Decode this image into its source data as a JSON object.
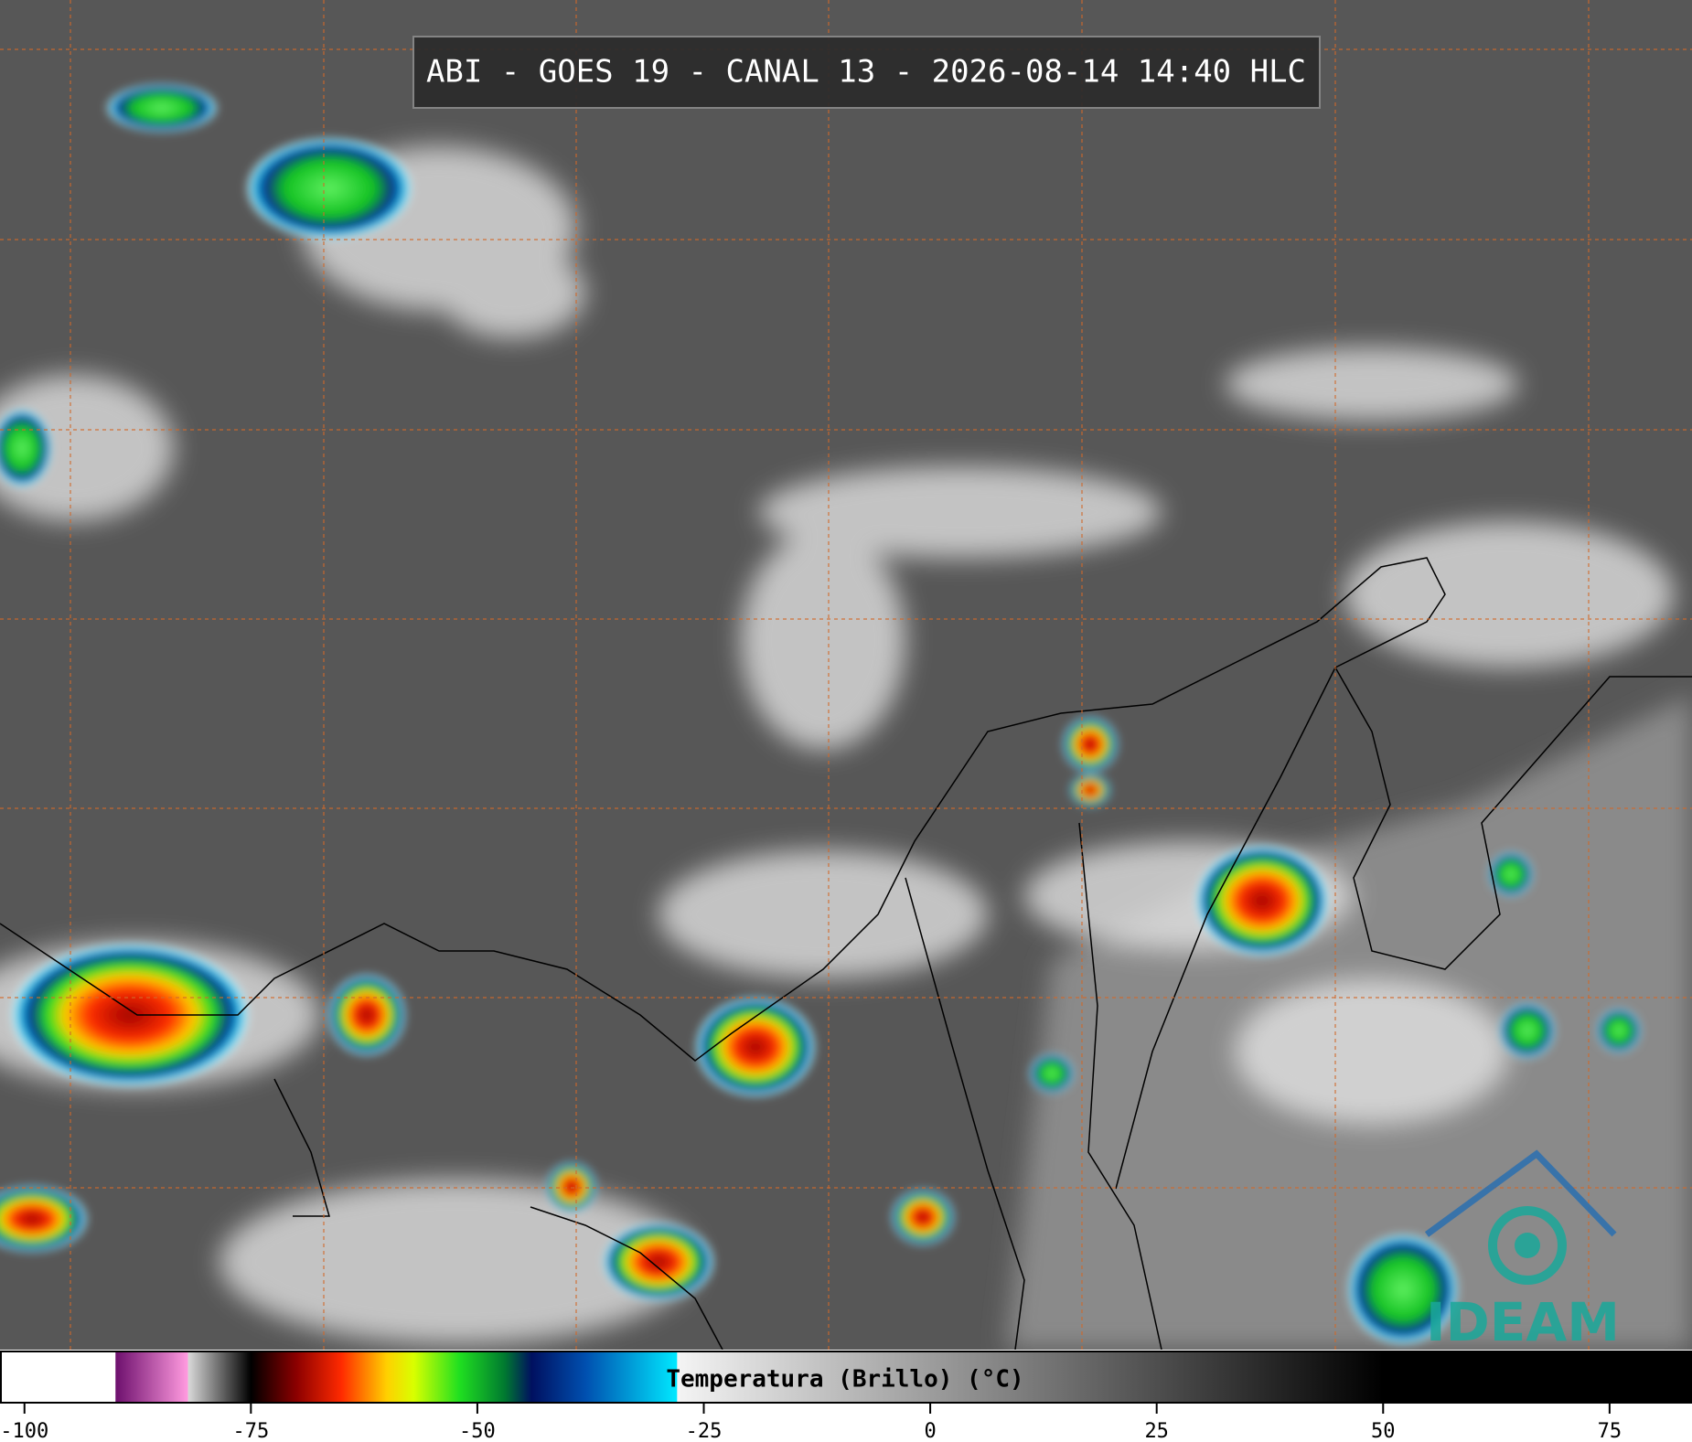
{
  "header": {
    "title": "ABI - GOES 19 - CANAL 13 - 2026-08-14 14:40 HLC"
  },
  "colorbar": {
    "label": "Temperatura (Brillo) (°C)",
    "lim": [
      -102.6,
      84.0
    ],
    "ticks": [
      -100,
      -75,
      -50,
      -25,
      0,
      25,
      50,
      75
    ],
    "colormap": [
      {
        "value": -90,
        "color": "#ffffff"
      },
      {
        "value": -89.9,
        "color": "#6e106e"
      },
      {
        "value": -82,
        "color": "#ff9adf"
      },
      {
        "value": -81.9,
        "color": "#d8d8d8"
      },
      {
        "value": -76,
        "color": "#202020"
      },
      {
        "value": -75,
        "color": "#000000"
      },
      {
        "value": -70,
        "color": "#8b0000"
      },
      {
        "value": -65,
        "color": "#ff2a00"
      },
      {
        "value": -60,
        "color": "#ffd000"
      },
      {
        "value": -57,
        "color": "#d8ff00"
      },
      {
        "value": -52,
        "color": "#20e020"
      },
      {
        "value": -47,
        "color": "#007a30"
      },
      {
        "value": -44,
        "color": "#001060"
      },
      {
        "value": -38,
        "color": "#0050b0"
      },
      {
        "value": -28,
        "color": "#00e8ff"
      },
      {
        "value": -27.9,
        "color": "#f4f4f4"
      },
      {
        "value": 50,
        "color": "#000000"
      }
    ]
  },
  "logo": {
    "text": "IDEAM"
  }
}
